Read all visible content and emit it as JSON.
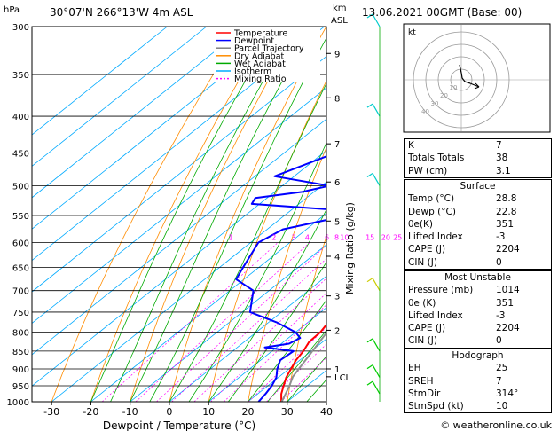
{
  "header": {
    "location": "30°07'N  266°13'W  4m  ASL",
    "datetime": "13.06.2021  00GMT  (Base: 00)",
    "pressure_unit": "hPa",
    "height_unit_km": "km",
    "height_unit_asl": "ASL"
  },
  "legend": {
    "items": [
      {
        "label": "Temperature",
        "color": "#ff0000",
        "dash": "none"
      },
      {
        "label": "Dewpoint",
        "color": "#0000ff",
        "dash": "none"
      },
      {
        "label": "Parcel Trajectory",
        "color": "#808080",
        "dash": "none"
      },
      {
        "label": "Dry Adiabat",
        "color": "#ff8c00",
        "dash": "none"
      },
      {
        "label": "Wet Adiabat",
        "color": "#00aa00",
        "dash": "none"
      },
      {
        "label": "Isotherm",
        "color": "#00aaff",
        "dash": "none"
      },
      {
        "label": "Mixing Ratio",
        "color": "#ff00ff",
        "dash": "2,2"
      }
    ]
  },
  "chart_data": {
    "type": "line",
    "title": "30°07'N  266°13'W  4m  ASL",
    "xlabel": "Dewpoint / Temperature (°C)",
    "ylabel": "hPa",
    "right_ylabel": "Mixing Ratio (g/kg)",
    "x_ticks": [
      -30,
      -20,
      -10,
      0,
      10,
      20,
      30,
      40
    ],
    "xlim": [
      -35,
      40
    ],
    "pressure_levels": [
      300,
      350,
      400,
      450,
      500,
      550,
      600,
      650,
      700,
      750,
      800,
      850,
      900,
      950,
      1000
    ],
    "pressure_range": [
      300,
      1000
    ],
    "skew": true,
    "km_ticks": [
      {
        "label": "9",
        "p": 327
      },
      {
        "label": "8",
        "p": 377
      },
      {
        "label": "7",
        "p": 437
      },
      {
        "label": "6",
        "p": 494
      },
      {
        "label": "5",
        "p": 560
      },
      {
        "label": "4",
        "p": 627
      },
      {
        "label": "3",
        "p": 712
      },
      {
        "label": "2",
        "p": 795
      },
      {
        "label": "1",
        "p": 900
      },
      {
        "label": "LCL",
        "p": 923
      }
    ],
    "mixing_ratio_labels": [
      "1",
      "2",
      "3",
      "4",
      "6",
      "8",
      "10",
      "15",
      "20",
      "25"
    ],
    "mixing_ratio_label_temps": [
      -7.5,
      3.5,
      8.5,
      12,
      17,
      19.5,
      21.5,
      28,
      32,
      35
    ],
    "series": [
      {
        "name": "Temperature",
        "color": "#ff0000",
        "points": [
          {
            "p": 1003,
            "t": 28.8
          },
          {
            "p": 975,
            "t": 26
          },
          {
            "p": 950,
            "t": 24
          },
          {
            "p": 925,
            "t": 22
          },
          {
            "p": 900,
            "t": 20.5
          },
          {
            "p": 875,
            "t": 19
          },
          {
            "p": 850,
            "t": 18
          },
          {
            "p": 825,
            "t": 16.5
          },
          {
            "p": 800,
            "t": 16.3
          },
          {
            "p": 775,
            "t": 15.2
          },
          {
            "p": 750,
            "t": 13.8
          },
          {
            "p": 725,
            "t": 12
          },
          {
            "p": 700,
            "t": 10
          },
          {
            "p": 650,
            "t": 6.5
          },
          {
            "p": 600,
            "t": 3
          },
          {
            "p": 575,
            "t": 0.5
          },
          {
            "p": 550,
            "t": -2.5
          },
          {
            "p": 525,
            "t": -4.5
          },
          {
            "p": 500,
            "t": -7
          },
          {
            "p": 450,
            "t": -12.5
          },
          {
            "p": 400,
            "t": -19
          },
          {
            "p": 350,
            "t": -26.5
          },
          {
            "p": 320,
            "t": -32
          },
          {
            "p": 300,
            "t": -36
          }
        ]
      },
      {
        "name": "Dewpoint",
        "color": "#0000ff",
        "points": [
          {
            "p": 1003,
            "t": 22.8
          },
          {
            "p": 975,
            "t": 22
          },
          {
            "p": 950,
            "t": 21
          },
          {
            "p": 925,
            "t": 19.5
          },
          {
            "p": 900,
            "t": 17
          },
          {
            "p": 875,
            "t": 15
          },
          {
            "p": 850,
            "t": 15.5
          },
          {
            "p": 840,
            "t": 7
          },
          {
            "p": 830,
            "t": 12
          },
          {
            "p": 815,
            "t": 13
          },
          {
            "p": 800,
            "t": 10
          },
          {
            "p": 775,
            "t": 2
          },
          {
            "p": 750,
            "t": -8
          },
          {
            "p": 700,
            "t": -14
          },
          {
            "p": 675,
            "t": -22
          },
          {
            "p": 650,
            "t": -24
          },
          {
            "p": 600,
            "t": -28
          },
          {
            "p": 575,
            "t": -26
          },
          {
            "p": 550,
            "t": -14
          },
          {
            "p": 540,
            "t": -19
          },
          {
            "p": 530,
            "t": -42
          },
          {
            "p": 520,
            "t": -43
          },
          {
            "p": 510,
            "t": -33
          },
          {
            "p": 500,
            "t": -28
          },
          {
            "p": 485,
            "t": -45
          },
          {
            "p": 450,
            "t": -37
          },
          {
            "p": 425,
            "t": -38
          },
          {
            "p": 415,
            "t": -33
          },
          {
            "p": 400,
            "t": -37
          },
          {
            "p": 375,
            "t": -45
          },
          {
            "p": 350,
            "t": -52
          },
          {
            "p": 320,
            "t": -57
          },
          {
            "p": 300,
            "t": -60
          }
        ]
      },
      {
        "name": "Parcel Trajectory",
        "color": "#909090",
        "points": [
          {
            "p": 1003,
            "t": 28.8
          },
          {
            "p": 950,
            "t": 25.5
          },
          {
            "p": 923,
            "t": 23.5
          },
          {
            "p": 900,
            "t": 22.5
          },
          {
            "p": 850,
            "t": 20.3
          },
          {
            "p": 800,
            "t": 18
          },
          {
            "p": 750,
            "t": 15.5
          },
          {
            "p": 700,
            "t": 12.5
          },
          {
            "p": 650,
            "t": 9.5
          },
          {
            "p": 600,
            "t": 6
          },
          {
            "p": 550,
            "t": 2
          },
          {
            "p": 500,
            "t": -2.5
          },
          {
            "p": 450,
            "t": -8
          },
          {
            "p": 400,
            "t": -14.5
          },
          {
            "p": 350,
            "t": -22.5
          },
          {
            "p": 300,
            "t": -32
          }
        ]
      }
    ]
  },
  "indices": {
    "rows": [
      {
        "label": "K",
        "value": "7"
      },
      {
        "label": "Totals Totals",
        "value": "38"
      },
      {
        "label": "PW (cm)",
        "value": "3.1"
      }
    ]
  },
  "surface": {
    "title": "Surface",
    "rows": [
      {
        "label": "Temp (°C)",
        "value": "28.8"
      },
      {
        "label": "Dewp (°C)",
        "value": "22.8"
      },
      {
        "label": "θe(K)",
        "value": "351"
      },
      {
        "label": "Lifted Index",
        "value": "-3"
      },
      {
        "label": "CAPE (J)",
        "value": "2204"
      },
      {
        "label": "CIN (J)",
        "value": "0"
      }
    ]
  },
  "most_unstable": {
    "title": "Most Unstable",
    "rows": [
      {
        "label": "Pressure (mb)",
        "value": "1014"
      },
      {
        "label": "θe (K)",
        "value": "351"
      },
      {
        "label": "Lifted Index",
        "value": "-3"
      },
      {
        "label": "CAPE (J)",
        "value": "2204"
      },
      {
        "label": "CIN (J)",
        "value": "0"
      }
    ]
  },
  "hodograph": {
    "title": "Hodograph",
    "label": "kt",
    "rings": [
      "10",
      "20",
      "30",
      "40"
    ],
    "rows": [
      {
        "label": "EH",
        "value": "25"
      },
      {
        "label": "SREH",
        "value": "7"
      },
      {
        "label": "StmDir",
        "value": "314°"
      },
      {
        "label": "StmSpd (kt)",
        "value": "10"
      }
    ]
  },
  "footer": {
    "copyright": "© weatheronline.co.uk"
  },
  "colors": {
    "temperature": "#ff0000",
    "dewpoint": "#0000ff",
    "parcel": "#909090",
    "dry_adiabat": "#ff8c00",
    "wet_adiabat": "#00aa00",
    "isotherm": "#00aaff",
    "mixing_ratio": "#ff00ff",
    "wind_upper": "#00cccc",
    "wind_mid": "#cccc00",
    "wind_low": "#00cc00"
  }
}
